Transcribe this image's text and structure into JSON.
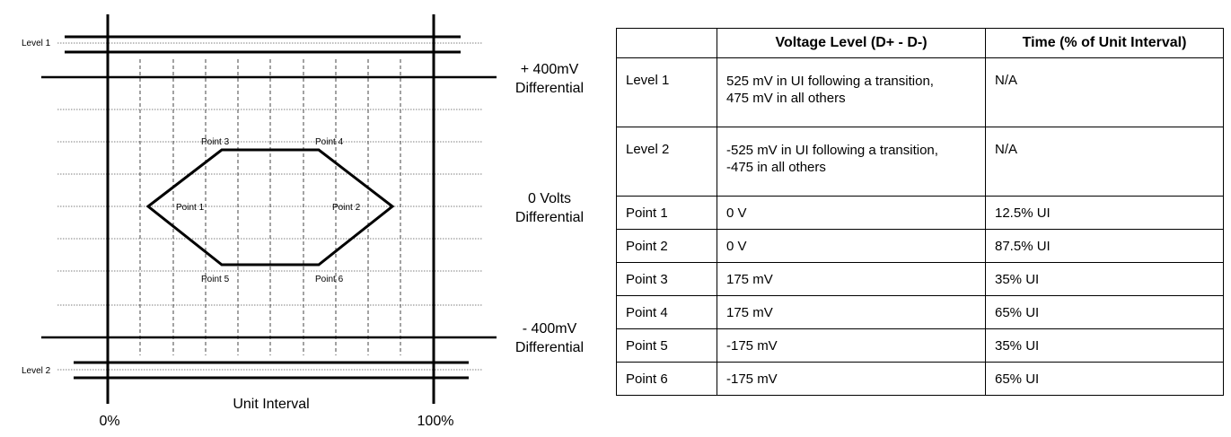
{
  "diagram": {
    "level1_label": "Level 1",
    "level2_label": "Level 2",
    "plus_label_line1": "+ 400mV",
    "plus_label_line2": "Differential",
    "zero_label_line1": "0 Volts",
    "zero_label_line2": "Differential",
    "minus_label_line1": "- 400mV",
    "minus_label_line2": "Differential",
    "x_axis_label": "Unit Interval",
    "x_start_label": "0%",
    "x_end_label": "100%",
    "points": {
      "p1": "Point 1",
      "p2": "Point 2",
      "p3": "Point 3",
      "p4": "Point 4",
      "p5": "Point 5",
      "p6": "Point 6"
    }
  },
  "table": {
    "headers": [
      "",
      "Voltage Level (D+ - D-)",
      "Time (% of Unit Interval)"
    ],
    "rows": [
      {
        "name": "Level 1",
        "voltage_line1": "525 mV in UI following a transition,",
        "voltage_line2": "475 mV in all others",
        "time": "N/A"
      },
      {
        "name": "Level 2",
        "voltage_line1": "-525 mV in UI following a transition,",
        "voltage_line2": "-475 in all others",
        "time": "N/A"
      },
      {
        "name": "Point 1",
        "voltage": "0 V",
        "time": "12.5% UI"
      },
      {
        "name": "Point 2",
        "voltage": "0 V",
        "time": "87.5% UI"
      },
      {
        "name": "Point 3",
        "voltage": "175 mV",
        "time": "35% UI"
      },
      {
        "name": "Point 4",
        "voltage": "175 mV",
        "time": "65% UI"
      },
      {
        "name": "Point 5",
        "voltage": "-175 mV",
        "time": "35% UI"
      },
      {
        "name": "Point 6",
        "voltage": "-175 mV",
        "time": "65% UI"
      }
    ]
  }
}
